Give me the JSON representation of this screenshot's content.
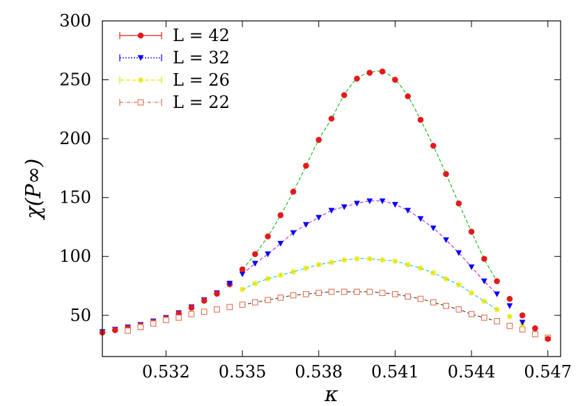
{
  "chart_data": {
    "type": "scatter",
    "title": "",
    "xlabel": "κ",
    "ylabel": "χ(P∞)",
    "xlim": [
      0.5295,
      0.5475
    ],
    "ylim": [
      15,
      300
    ],
    "xticks": [
      0.532,
      0.535,
      0.538,
      0.541,
      0.544,
      0.547
    ],
    "xtick_labels": [
      "0.532",
      "0.535",
      "0.538",
      "0.541",
      "0.544",
      "0.547"
    ],
    "yticks": [
      50,
      100,
      150,
      200,
      250,
      300
    ],
    "ytick_labels": [
      "50",
      "100",
      "150",
      "200",
      "250",
      "300"
    ],
    "legend_position": "top-left",
    "series": [
      {
        "name": "L = 42",
        "color": "#e31a1c",
        "marker": "filled-circle",
        "x": [
          0.535,
          0.5355,
          0.536,
          0.5365,
          0.537,
          0.5375,
          0.538,
          0.5385,
          0.539,
          0.5395,
          0.54,
          0.5405,
          0.541,
          0.5415,
          0.542,
          0.5425,
          0.543,
          0.5435,
          0.544,
          0.5445,
          0.545,
          0.5455,
          0.546,
          0.5465,
          0.547
        ],
        "y": [
          89,
          102,
          117,
          135,
          155,
          177,
          199,
          217,
          237,
          251,
          256,
          257,
          250,
          236,
          216,
          194,
          170,
          145,
          121,
          98,
          79,
          64,
          50,
          39,
          30
        ]
      },
      {
        "name": "L = 32",
        "color": "#0000ff",
        "marker": "filled-triangle-down",
        "x": [
          0.5345,
          0.535,
          0.5355,
          0.536,
          0.5365,
          0.537,
          0.5375,
          0.538,
          0.5385,
          0.539,
          0.5395,
          0.54,
          0.5405,
          0.541,
          0.5415,
          0.542,
          0.5425,
          0.543,
          0.5435,
          0.544,
          0.5445,
          0.545,
          0.5455,
          0.546
        ],
        "y": [
          77,
          85,
          94,
          102,
          111,
          120,
          127,
          133,
          139,
          142,
          145,
          147,
          147,
          144,
          139,
          132,
          124,
          114,
          103,
          91,
          79,
          68,
          58,
          44
        ]
      },
      {
        "name": "L = 26",
        "color": "#e6e600",
        "marker": "star",
        "x": [
          0.535,
          0.5355,
          0.536,
          0.5365,
          0.537,
          0.5375,
          0.538,
          0.5385,
          0.539,
          0.5395,
          0.54,
          0.5405,
          0.541,
          0.5415,
          0.542,
          0.5425,
          0.543,
          0.5435,
          0.544,
          0.5445,
          0.545,
          0.5455,
          0.546
        ],
        "y": [
          72,
          77,
          81,
          84,
          87,
          90,
          93,
          95,
          97,
          98,
          98,
          97,
          96,
          93,
          90,
          86,
          81,
          76,
          69,
          62,
          55,
          49,
          42
        ]
      },
      {
        "name": "L = 22",
        "color": "#e07050",
        "marker": "open-square",
        "x": [
          0.5305,
          0.531,
          0.5315,
          0.532,
          0.5325,
          0.533,
          0.5335,
          0.534,
          0.5345,
          0.535,
          0.5355,
          0.536,
          0.5365,
          0.537,
          0.5375,
          0.538,
          0.5385,
          0.539,
          0.5395,
          0.54,
          0.5405,
          0.541,
          0.5415,
          0.542,
          0.5425,
          0.543,
          0.5435,
          0.544,
          0.5445,
          0.545,
          0.5455,
          0.546,
          0.5465,
          0.547
        ],
        "y": [
          37,
          40,
          43,
          46,
          48,
          51,
          53,
          55,
          57,
          59,
          61,
          63,
          65,
          67,
          68,
          69,
          70,
          70,
          70,
          70,
          69,
          68,
          66,
          64,
          61,
          58,
          55,
          51,
          48,
          45,
          41,
          38,
          34,
          31
        ]
      }
    ],
    "low_kappa_overlap": {
      "x": [
        0.5295,
        0.53,
        0.5305,
        0.531,
        0.5315,
        0.532,
        0.5325,
        0.533,
        0.5335,
        0.534,
        0.5345
      ],
      "y": [
        36,
        38,
        40,
        42,
        45,
        48,
        52,
        57,
        63,
        69,
        77
      ]
    },
    "fit_curves": [
      {
        "series": "L = 42",
        "color": "#22bb22",
        "x_range": [
          0.535,
          0.545
        ],
        "peak_x": 0.5403,
        "peak_y": 257
      },
      {
        "series": "L = 32",
        "color": "#cc33cc",
        "x_range": [
          0.535,
          0.545
        ],
        "peak_x": 0.5401,
        "peak_y": 148
      },
      {
        "series": "L = 26",
        "color": "#33cccc",
        "x_range": [
          0.535,
          0.545
        ],
        "peak_x": 0.5398,
        "peak_y": 98
      },
      {
        "series": "L = 22",
        "color": "#444444",
        "x_range": [
          0.535,
          0.545
        ],
        "peak_x": 0.5397,
        "peak_y": 70
      }
    ]
  }
}
